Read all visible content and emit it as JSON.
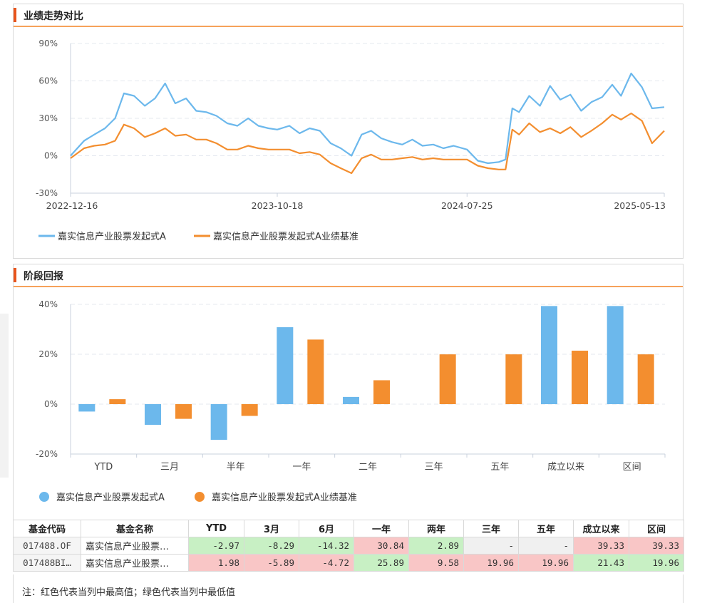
{
  "sections": {
    "trend_title": "业绩走势对比",
    "period_title": "阶段回报"
  },
  "colors": {
    "fund": "#6cb8ec",
    "benchmark": "#f38e2f",
    "accent": "#e8541c"
  },
  "legend": {
    "fund": "嘉实信息产业股票发起式A",
    "benchmark": "嘉实信息产业股票发起式A业绩基准"
  },
  "chart_data": [
    {
      "type": "line",
      "title": "",
      "x_tick_labels": [
        "2022-12-16",
        "2023-10-18",
        "2024-07-25",
        "2025-05-13"
      ],
      "y_tick_labels": [
        "90%",
        "60%",
        "30%",
        "0%",
        "-30%"
      ],
      "ylim": [
        -30,
        90
      ],
      "grid": true,
      "legend_position": "bottom-left",
      "series": [
        {
          "name": "嘉实信息产业股票发起式A",
          "x": [
            "2022-12-16",
            "2023-01-05",
            "2023-01-20",
            "2023-02-05",
            "2023-02-20",
            "2023-03-05",
            "2023-03-20",
            "2023-04-05",
            "2023-04-20",
            "2023-05-05",
            "2023-05-20",
            "2023-06-05",
            "2023-06-20",
            "2023-07-05",
            "2023-07-20",
            "2023-08-05",
            "2023-08-20",
            "2023-09-05",
            "2023-09-20",
            "2023-10-05",
            "2023-10-18",
            "2023-11-05",
            "2023-11-20",
            "2023-12-05",
            "2023-12-20",
            "2024-01-05",
            "2024-01-20",
            "2024-02-05",
            "2024-02-20",
            "2024-03-05",
            "2024-03-20",
            "2024-04-05",
            "2024-04-20",
            "2024-05-05",
            "2024-05-20",
            "2024-06-05",
            "2024-06-20",
            "2024-07-05",
            "2024-07-25",
            "2024-08-10",
            "2024-08-25",
            "2024-09-10",
            "2024-09-20",
            "2024-09-30",
            "2024-10-10",
            "2024-10-25",
            "2024-11-10",
            "2024-11-25",
            "2024-12-10",
            "2024-12-25",
            "2025-01-10",
            "2025-01-25",
            "2025-02-10",
            "2025-02-25",
            "2025-03-10",
            "2025-03-25",
            "2025-04-10",
            "2025-04-25",
            "2025-05-13"
          ],
          "values": [
            0,
            12,
            17,
            22,
            30,
            50,
            48,
            40,
            46,
            58,
            42,
            46,
            36,
            35,
            32,
            26,
            24,
            30,
            24,
            22,
            21,
            24,
            18,
            22,
            20,
            10,
            6,
            0,
            17,
            20,
            14,
            11,
            9,
            13,
            8,
            9,
            6,
            8,
            5,
            -4,
            -6,
            -5,
            -3,
            38,
            35,
            48,
            40,
            56,
            45,
            49,
            36,
            43,
            47,
            57,
            48,
            66,
            55,
            38,
            39
          ]
        },
        {
          "name": "嘉实信息产业股票发起式A业绩基准",
          "x": [
            "2022-12-16",
            "2023-01-05",
            "2023-01-20",
            "2023-02-05",
            "2023-02-20",
            "2023-03-05",
            "2023-03-20",
            "2023-04-05",
            "2023-04-20",
            "2023-05-05",
            "2023-05-20",
            "2023-06-05",
            "2023-06-20",
            "2023-07-05",
            "2023-07-20",
            "2023-08-05",
            "2023-08-20",
            "2023-09-05",
            "2023-09-20",
            "2023-10-05",
            "2023-10-18",
            "2023-11-05",
            "2023-11-20",
            "2023-12-05",
            "2023-12-20",
            "2024-01-05",
            "2024-01-20",
            "2024-02-05",
            "2024-02-20",
            "2024-03-05",
            "2024-03-20",
            "2024-04-05",
            "2024-04-20",
            "2024-05-05",
            "2024-05-20",
            "2024-06-05",
            "2024-06-20",
            "2024-07-05",
            "2024-07-25",
            "2024-08-10",
            "2024-08-25",
            "2024-09-10",
            "2024-09-20",
            "2024-09-30",
            "2024-10-10",
            "2024-10-25",
            "2024-11-10",
            "2024-11-25",
            "2024-12-10",
            "2024-12-25",
            "2025-01-10",
            "2025-01-25",
            "2025-02-10",
            "2025-02-25",
            "2025-03-10",
            "2025-03-25",
            "2025-04-10",
            "2025-04-25",
            "2025-05-13"
          ],
          "values": [
            -2,
            6,
            8,
            9,
            12,
            25,
            22,
            15,
            18,
            22,
            16,
            17,
            13,
            13,
            10,
            5,
            5,
            8,
            6,
            5,
            5,
            5,
            2,
            3,
            1,
            -6,
            -10,
            -14,
            -2,
            1,
            -3,
            -3,
            -2,
            -1,
            -3,
            -2,
            -3,
            -3,
            -3,
            -8,
            -10,
            -11,
            -11,
            21,
            17,
            26,
            19,
            22,
            18,
            23,
            15,
            20,
            26,
            33,
            29,
            34,
            28,
            10,
            20
          ]
        }
      ]
    },
    {
      "type": "bar",
      "title": "",
      "categories": [
        "YTD",
        "三月",
        "半年",
        "一年",
        "二年",
        "三年",
        "五年",
        "成立以来",
        "区间"
      ],
      "y_tick_labels": [
        "40%",
        "20%",
        "0%",
        "-20%"
      ],
      "ylim": [
        -20,
        40
      ],
      "grid": true,
      "legend_position": "bottom-left",
      "series": [
        {
          "name": "嘉实信息产业股票发起式A",
          "values": [
            -2.97,
            -8.29,
            -14.32,
            30.84,
            2.89,
            null,
            null,
            39.33,
            39.33
          ]
        },
        {
          "name": "嘉实信息产业股票发起式A业绩基准",
          "values": [
            1.98,
            -5.89,
            -4.72,
            25.89,
            9.58,
            19.96,
            19.96,
            21.43,
            19.96
          ]
        }
      ]
    }
  ],
  "table": {
    "headers": [
      "基金代码",
      "基金名称",
      "YTD",
      "3月",
      "6月",
      "一年",
      "两年",
      "三年",
      "五年",
      "成立以来",
      "区间"
    ],
    "rows": [
      {
        "code": "017488.OF",
        "name": "嘉实信息产业股票…",
        "cells": [
          {
            "v": "-2.97",
            "s": "lo"
          },
          {
            "v": "-8.29",
            "s": "lo"
          },
          {
            "v": "-14.32",
            "s": "lo"
          },
          {
            "v": "30.84",
            "s": "hi"
          },
          {
            "v": "2.89",
            "s": "lo"
          },
          {
            "v": "-",
            "s": "na"
          },
          {
            "v": "-",
            "s": "na"
          },
          {
            "v": "39.33",
            "s": "hi"
          },
          {
            "v": "39.33",
            "s": "hi"
          }
        ]
      },
      {
        "code": "017488BI…",
        "name": "嘉实信息产业股票…",
        "cells": [
          {
            "v": "1.98",
            "s": "hi"
          },
          {
            "v": "-5.89",
            "s": "hi"
          },
          {
            "v": "-4.72",
            "s": "hi"
          },
          {
            "v": "25.89",
            "s": "lo"
          },
          {
            "v": "9.58",
            "s": "hi"
          },
          {
            "v": "19.96",
            "s": "hi"
          },
          {
            "v": "19.96",
            "s": "hi"
          },
          {
            "v": "21.43",
            "s": "lo"
          },
          {
            "v": "19.96",
            "s": "lo"
          }
        ]
      }
    ]
  },
  "note": "注：红色代表当列中最高值；绿色代表当列中最低值"
}
